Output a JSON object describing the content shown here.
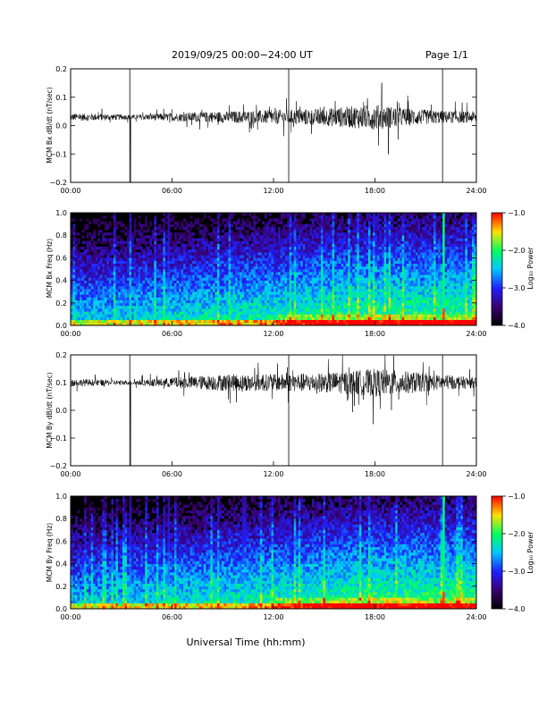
{
  "header": {
    "date_range": "2019/09/25  00:00−24:00 UT",
    "page": "Page 1/1"
  },
  "xlabel": "Universal Time (hh:mm)",
  "colorbar": {
    "label": "Log₁₀ Power",
    "ticks": [
      "−1.0",
      "−2.0",
      "−3.0",
      "−4.0"
    ],
    "range": [
      -4.0,
      -1.0
    ],
    "colors": [
      "#000000",
      "#3a006e",
      "#2020ff",
      "#00c8ff",
      "#00ff60",
      "#ffe000",
      "#ff0000"
    ]
  },
  "chart_data": [
    {
      "type": "line",
      "ylabel": "MCM Bx dB/dt (nT/sec)",
      "xlim": [
        0,
        24
      ],
      "ylim": [
        -0.2,
        0.2
      ],
      "x_ticks": [
        "00:00",
        "06:00",
        "12:00",
        "18:00",
        "24:00"
      ],
      "y_ticks": [
        "0.2",
        "0.1",
        "0.0",
        "−0.1",
        "−0.2"
      ],
      "baseline": 0.03,
      "noise_profile": [
        [
          0,
          0.013
        ],
        [
          2,
          0.012
        ],
        [
          3.5,
          0.008
        ],
        [
          5,
          0.012
        ],
        [
          9,
          0.02
        ],
        [
          12,
          0.025
        ],
        [
          15,
          0.03
        ],
        [
          18,
          0.045
        ],
        [
          20,
          0.03
        ],
        [
          22,
          0.022
        ],
        [
          24,
          0.02
        ]
      ],
      "vertical_lines": [
        3.5,
        12.9,
        22.0
      ],
      "spikes": [
        {
          "x": 3.55,
          "y": -0.2
        },
        {
          "x": 18.4,
          "y": 0.15
        },
        {
          "x": 18.8,
          "y": -0.1
        }
      ]
    },
    {
      "type": "heatmap",
      "ylabel": "MCM Bx Freq (Hz)",
      "xlim": [
        0,
        24
      ],
      "ylim": [
        0,
        1.0
      ],
      "x_ticks": [
        "00:00",
        "06:00",
        "12:00",
        "18:00",
        "24:00"
      ],
      "y_ticks": [
        "1.0",
        "0.8",
        "0.6",
        "0.4",
        "0.2",
        "0.0"
      ],
      "bright_columns": [
        22.0,
        3.5,
        5.7
      ],
      "zrange": [
        -4.0,
        -1.0
      ]
    },
    {
      "type": "line",
      "ylabel": "MCM By dB/dt (nT/sec)",
      "xlim": [
        0,
        24
      ],
      "ylim": [
        -0.2,
        0.2
      ],
      "x_ticks": [
        "00:00",
        "06:00",
        "12:00",
        "18:00",
        "24:00"
      ],
      "y_ticks": [
        "0.2",
        "0.1",
        "0.0",
        "−0.1",
        "−0.2"
      ],
      "baseline": 0.1,
      "noise_profile": [
        [
          0,
          0.014
        ],
        [
          3.5,
          0.008
        ],
        [
          6,
          0.018
        ],
        [
          9,
          0.03
        ],
        [
          12,
          0.03
        ],
        [
          15,
          0.035
        ],
        [
          18,
          0.05
        ],
        [
          20,
          0.04
        ],
        [
          22,
          0.025
        ],
        [
          24,
          0.02
        ]
      ],
      "vertical_lines": [
        3.5,
        12.9,
        22.0
      ],
      "spikes": [
        {
          "x": 3.55,
          "y": -0.2
        },
        {
          "x": 17.9,
          "y": -0.05
        },
        {
          "x": 18.6,
          "y": 0.2
        }
      ]
    },
    {
      "type": "heatmap",
      "ylabel": "MCM By Freq (Hz)",
      "xlim": [
        0,
        24
      ],
      "ylim": [
        0,
        1.0
      ],
      "x_ticks": [
        "00:00",
        "06:00",
        "12:00",
        "18:00",
        "24:00"
      ],
      "y_ticks": [
        "1.0",
        "0.8",
        "0.6",
        "0.4",
        "0.2",
        "0.0"
      ],
      "bright_columns": [
        22.0,
        10.2,
        3.5,
        5.7
      ],
      "zrange": [
        -4.0,
        -1.0
      ]
    }
  ]
}
